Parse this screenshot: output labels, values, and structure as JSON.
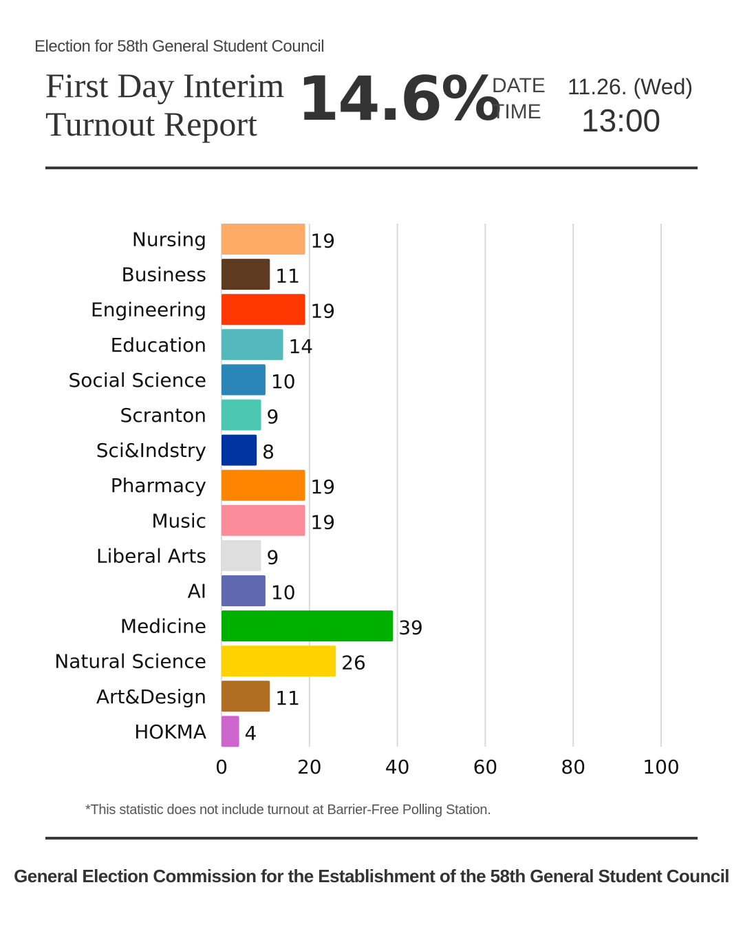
{
  "header": {
    "subtitle": "Election for 58th General Student Council",
    "title_line1": "First Day Interim",
    "title_line2": "Turnout Report",
    "turnout": "14.6%",
    "date_label": "DATE",
    "time_label": "TIME",
    "date_value": "11.26. (Wed)",
    "time_value": "13:00"
  },
  "chart_data": {
    "type": "bar",
    "orientation": "horizontal",
    "categories": [
      "Nursing",
      "Business",
      "Engineering",
      "Education",
      "Social Science",
      "Scranton",
      "Sci&Indstry",
      "Pharmacy",
      "Music",
      "Liberal Arts",
      "AI",
      "Medicine",
      "Natural Science",
      "Art&Design",
      "HOKMA"
    ],
    "values": [
      19,
      11,
      19,
      14,
      10,
      9,
      8,
      19,
      19,
      9,
      10,
      39,
      26,
      11,
      4
    ],
    "colors": [
      "#fdab66",
      "#5e3a21",
      "#ff3700",
      "#54b9bd",
      "#2b86b8",
      "#4cc7b2",
      "#0033a0",
      "#ff8400",
      "#fa8b99",
      "#dedede",
      "#6068b0",
      "#00b000",
      "#ffd200",
      "#b06e22",
      "#cc66cc"
    ],
    "xlim": [
      0,
      100
    ],
    "xticks": [
      "0",
      "20",
      "40",
      "60",
      "80",
      "100"
    ],
    "grid": true,
    "title": "",
    "xlabel": "",
    "ylabel": ""
  },
  "note": "*This statistic does not include turnout at Barrier-Free Polling Station.",
  "footer": "General Election Commission for the Establishment of the 58th General Student Council"
}
